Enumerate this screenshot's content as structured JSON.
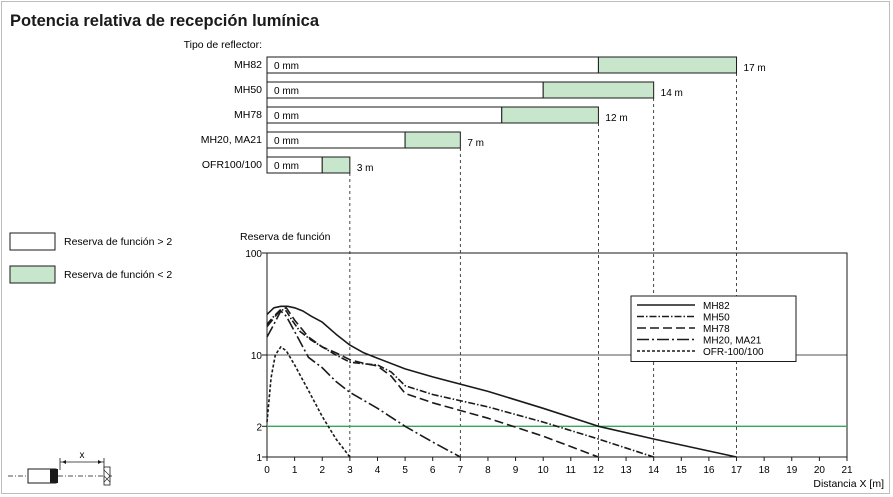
{
  "title": "Potencia relativa de recepción lumínica",
  "reflector_header": "Tipo de reflector:",
  "legend_boxes": [
    {
      "label": "Reserva de función > 2",
      "fill": "#ffffff"
    },
    {
      "label": "Reserva de función < 2",
      "fill": "#c8e6cc"
    }
  ],
  "colors": {
    "green_fill": "#c8e6cc",
    "green_line": "#3aa55a",
    "line": "#1a1a1a"
  },
  "sensor_icon": "through-beam-sensor-icon",
  "sensor_distance_label": "x",
  "chart_data": [
    {
      "type": "bar",
      "orientation": "horizontal",
      "categories": [
        "MH82",
        "MH50",
        "MH78",
        "MH20, MA21",
        "OFR100/100"
      ],
      "series": [
        {
          "name": "Reserva de función > 2",
          "values": [
            [
              0,
              12
            ],
            [
              0,
              10
            ],
            [
              0,
              8.5
            ],
            [
              0,
              5
            ],
            [
              0,
              2
            ]
          ]
        },
        {
          "name": "Reserva de función < 2",
          "values": [
            [
              12,
              17
            ],
            [
              10,
              14
            ],
            [
              8.5,
              12
            ],
            [
              5,
              7
            ],
            [
              2,
              3
            ]
          ]
        }
      ],
      "start_labels": [
        "0 mm",
        "0 mm",
        "0 mm",
        "0 mm",
        "0 mm"
      ],
      "end_labels": [
        "17 m",
        "14 m",
        "12 m",
        "7 m",
        "3 m"
      ],
      "xlim": [
        0,
        21
      ]
    },
    {
      "type": "line",
      "ylabel": "Reserva de función",
      "xlabel": "Distancia X [m]",
      "xlim": [
        0,
        21
      ],
      "ylim": [
        1,
        100
      ],
      "yscale": "log",
      "yticks": [
        1,
        2,
        10,
        100
      ],
      "xticks": [
        0,
        1,
        2,
        3,
        4,
        5,
        6,
        7,
        8,
        9,
        10,
        11,
        12,
        13,
        14,
        15,
        16,
        17,
        18,
        19,
        20,
        21
      ],
      "reference_line": {
        "y": 2,
        "color": "#3aa55a"
      },
      "legend_position": "top-right",
      "series": [
        {
          "name": "MH82",
          "dash": "solid",
          "x": [
            0,
            0.25,
            0.5,
            0.75,
            1.0,
            1.3,
            1.6,
            2.0,
            2.5,
            3.0,
            3.5,
            4.0,
            5.0,
            6.0,
            8.0,
            10.0,
            12.0,
            14.0,
            17.0
          ],
          "y": [
            25,
            29,
            30,
            30,
            29,
            27,
            24,
            21,
            16,
            12.5,
            10.5,
            9.3,
            7.3,
            6.1,
            4.4,
            3.0,
            2.0,
            1.5,
            1.0
          ]
        },
        {
          "name": "MH50",
          "dash": "dash-dot",
          "x": [
            0,
            0.25,
            0.5,
            0.7,
            0.9,
            1.2,
            1.6,
            2.0,
            2.5,
            3.0,
            3.5,
            4.0,
            4.5,
            5.0,
            6.0,
            8.0,
            10.0,
            12.0,
            14.0
          ],
          "y": [
            20,
            24,
            28,
            27,
            22,
            17,
            14,
            12,
            10,
            8.5,
            8.2,
            8.0,
            6.8,
            5.0,
            4.1,
            3.1,
            2.2,
            1.5,
            1.0
          ]
        },
        {
          "name": "MH78",
          "dash": "dashed",
          "x": [
            0,
            0.25,
            0.5,
            0.7,
            1.0,
            1.5,
            2.0,
            2.5,
            3.0,
            3.5,
            4.0,
            4.5,
            5.0,
            6.0,
            8.0,
            10.0,
            12.0
          ],
          "y": [
            19,
            23,
            28,
            29,
            22,
            15,
            12,
            10.5,
            9.0,
            8.3,
            7.8,
            6.2,
            4.2,
            3.4,
            2.4,
            1.6,
            1.0
          ]
        },
        {
          "name": "MH20, MA21",
          "dash": "long-dash-dot",
          "x": [
            0,
            0.25,
            0.5,
            0.7,
            1.0,
            1.5,
            2.0,
            2.5,
            3.0,
            4.0,
            5.0,
            6.0,
            7.0
          ],
          "y": [
            15,
            20,
            27,
            24,
            17,
            9.5,
            7.5,
            5.5,
            4.3,
            3.0,
            2.0,
            1.4,
            1.0
          ]
        },
        {
          "name": "OFR-100/100",
          "dash": "dotted",
          "x": [
            0,
            0.15,
            0.3,
            0.5,
            0.7,
            1.0,
            1.5,
            2.0,
            2.5,
            3.0
          ],
          "y": [
            2.2,
            6,
            10,
            12,
            11,
            8.0,
            4.5,
            2.5,
            1.5,
            1.0
          ]
        }
      ]
    }
  ]
}
